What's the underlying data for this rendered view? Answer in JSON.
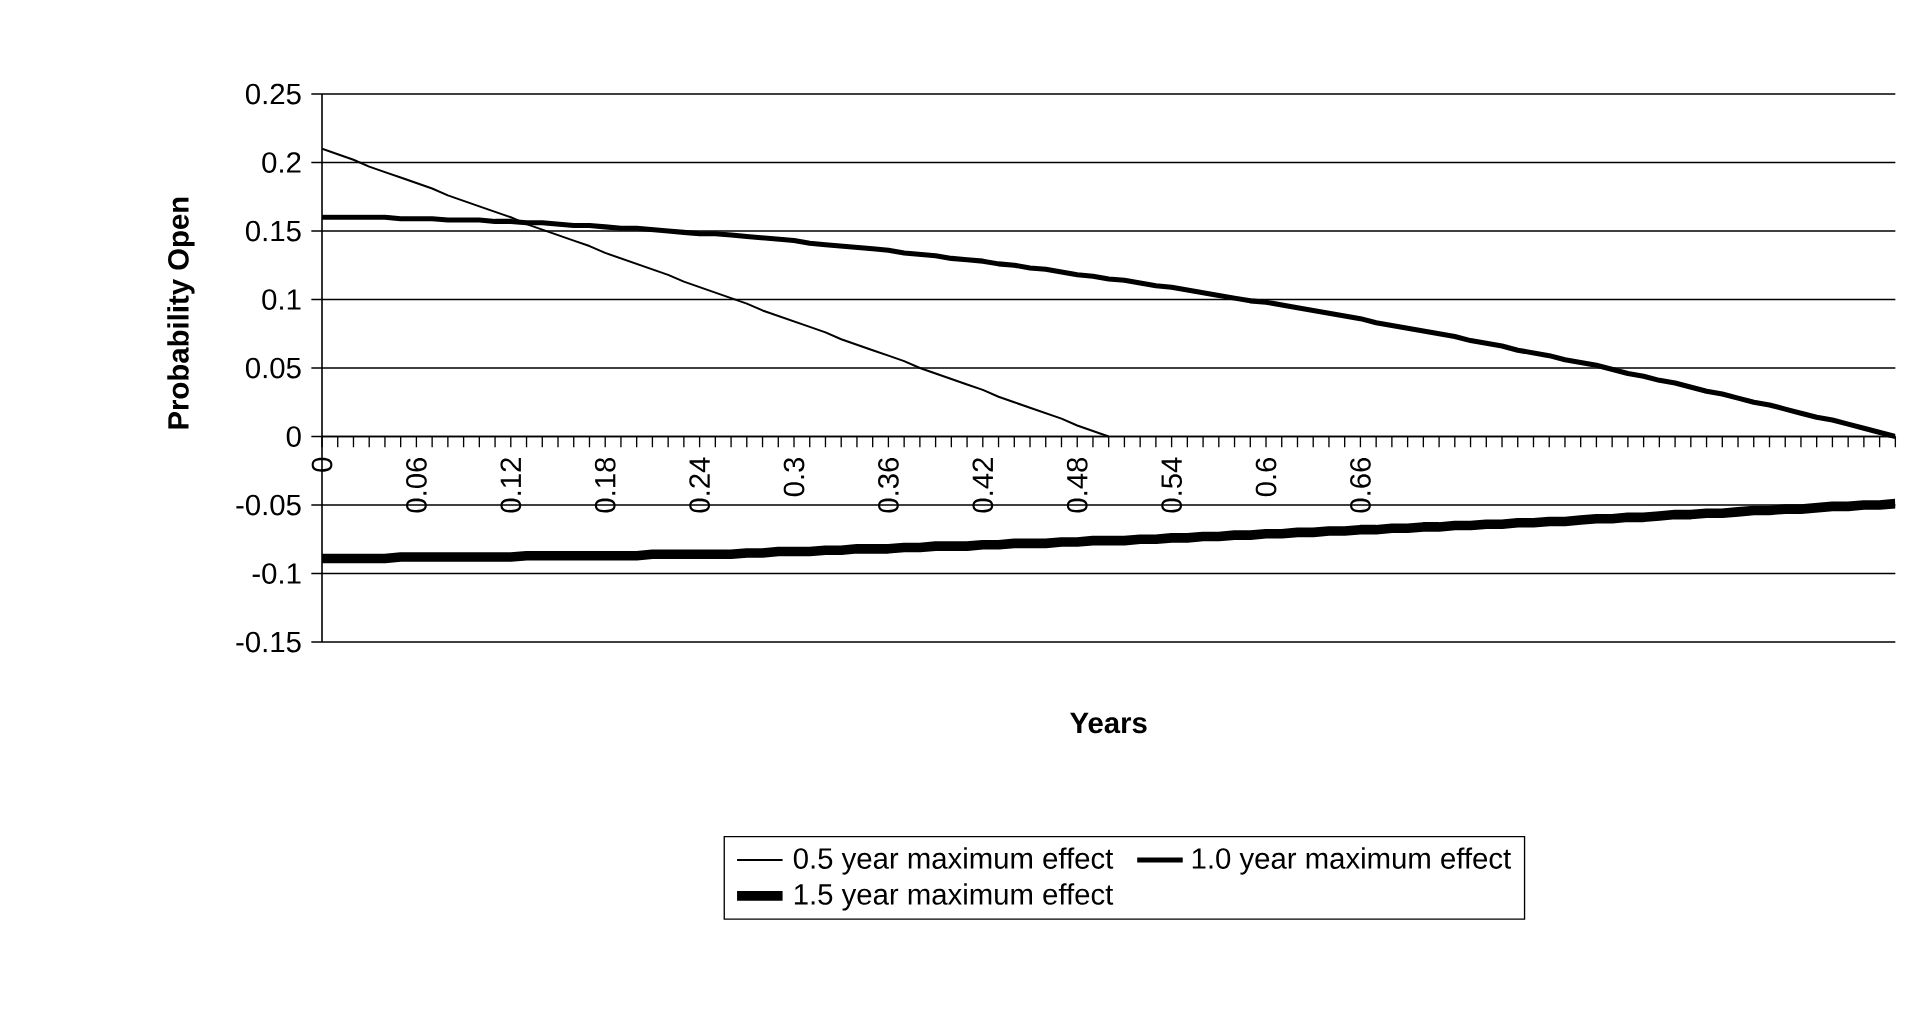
{
  "chart_data": {
    "type": "line",
    "xlabel": "Years",
    "ylabel": "Probability Open",
    "categories": [
      "0",
      null,
      null,
      null,
      null,
      null,
      "0.06",
      null,
      null,
      null,
      null,
      null,
      "0.12",
      null,
      null,
      null,
      null,
      null,
      "0.18",
      null,
      null,
      null,
      null,
      null,
      "0.24",
      null,
      null,
      null,
      null,
      null,
      "0.3",
      null,
      null,
      null,
      null,
      null,
      "0.36",
      null,
      null,
      null,
      null,
      null,
      "0.42",
      null,
      null,
      null,
      null,
      null,
      "0.48",
      null,
      null,
      null,
      null,
      null,
      "0.54",
      null,
      null,
      null,
      null,
      null,
      "0.6",
      null,
      null,
      null,
      null,
      null,
      "0.66",
      null,
      null,
      null,
      null,
      null,
      null,
      null,
      null,
      null,
      null,
      null,
      null,
      null,
      null,
      null,
      null,
      null,
      null,
      null,
      null,
      null,
      null,
      null,
      null,
      null,
      null,
      null,
      null,
      null,
      null,
      null,
      null,
      null,
      null
    ],
    "series": [
      {
        "name": "0.5 year maximum effect",
        "color": "#000000",
        "values": [
          0.21,
          0.206,
          0.202,
          0.197,
          0.193,
          0.189,
          0.185,
          0.181,
          0.176,
          0.172,
          0.168,
          0.164,
          0.16,
          0.155,
          0.151,
          0.147,
          0.143,
          0.139,
          0.134,
          0.13,
          0.126,
          0.122,
          0.118,
          0.113,
          0.109,
          0.105,
          0.101,
          0.097,
          0.092,
          0.088,
          0.084,
          0.08,
          0.076,
          0.071,
          0.067,
          0.063,
          0.059,
          0.055,
          0.05,
          0.046,
          0.042,
          0.038,
          0.034,
          0.029,
          0.025,
          0.021,
          0.017,
          0.013,
          0.008,
          0.004,
          0.0,
          null,
          null,
          null,
          null,
          null,
          null,
          null,
          null,
          null,
          null,
          null,
          null,
          null,
          null,
          null,
          null,
          null,
          null,
          null,
          null,
          null,
          null,
          null,
          null,
          null,
          null,
          null,
          null,
          null,
          null,
          null,
          null,
          null,
          null,
          null,
          null,
          null,
          null,
          null,
          null,
          null,
          null,
          null,
          null,
          null,
          null,
          null,
          null,
          null,
          null
        ]
      },
      {
        "name": "1.0 year maximum effect",
        "color": "#000000",
        "values": [
          0.16,
          0.16,
          0.16,
          0.16,
          0.16,
          0.159,
          0.159,
          0.159,
          0.158,
          0.158,
          0.158,
          0.157,
          0.157,
          0.156,
          0.156,
          0.155,
          0.154,
          0.154,
          0.153,
          0.152,
          0.152,
          0.151,
          0.15,
          0.149,
          0.148,
          0.148,
          0.147,
          0.146,
          0.145,
          0.144,
          0.143,
          0.141,
          0.14,
          0.139,
          0.138,
          0.137,
          0.136,
          0.134,
          0.133,
          0.132,
          0.13,
          0.129,
          0.128,
          0.126,
          0.125,
          0.123,
          0.122,
          0.12,
          0.118,
          0.117,
          0.115,
          0.114,
          0.112,
          0.11,
          0.109,
          0.107,
          0.105,
          0.103,
          0.101,
          0.099,
          0.098,
          0.096,
          0.094,
          0.092,
          0.09,
          0.088,
          0.086,
          0.083,
          0.081,
          0.079,
          0.077,
          0.075,
          0.073,
          0.07,
          0.068,
          0.066,
          0.063,
          0.061,
          0.059,
          0.056,
          0.054,
          0.052,
          0.049,
          0.046,
          0.044,
          0.041,
          0.039,
          0.036,
          0.033,
          0.031,
          0.028,
          0.025,
          0.023,
          0.02,
          0.017,
          0.014,
          0.012,
          0.009,
          0.006,
          0.003,
          0.0
        ]
      },
      {
        "name": "1.5 year maximum effect",
        "color": "#000000",
        "values": [
          -0.089,
          -0.089,
          -0.089,
          -0.089,
          -0.089,
          -0.088,
          -0.088,
          -0.088,
          -0.088,
          -0.088,
          -0.088,
          -0.088,
          -0.088,
          -0.087,
          -0.087,
          -0.087,
          -0.087,
          -0.087,
          -0.087,
          -0.087,
          -0.087,
          -0.086,
          -0.086,
          -0.086,
          -0.086,
          -0.086,
          -0.086,
          -0.085,
          -0.085,
          -0.084,
          -0.084,
          -0.084,
          -0.083,
          -0.083,
          -0.082,
          -0.082,
          -0.082,
          -0.081,
          -0.081,
          -0.08,
          -0.08,
          -0.08,
          -0.079,
          -0.079,
          -0.078,
          -0.078,
          -0.078,
          -0.077,
          -0.077,
          -0.076,
          -0.076,
          -0.076,
          -0.075,
          -0.075,
          -0.074,
          -0.074,
          -0.073,
          -0.073,
          -0.072,
          -0.072,
          -0.071,
          -0.071,
          -0.07,
          -0.07,
          -0.069,
          -0.069,
          -0.068,
          -0.068,
          -0.067,
          -0.067,
          -0.066,
          -0.066,
          -0.065,
          -0.065,
          -0.064,
          -0.064,
          -0.063,
          -0.063,
          -0.062,
          -0.062,
          -0.061,
          -0.06,
          -0.06,
          -0.059,
          -0.059,
          -0.058,
          -0.057,
          -0.057,
          -0.056,
          -0.056,
          -0.055,
          -0.054,
          -0.054,
          -0.053,
          -0.053,
          -0.052,
          -0.051,
          -0.051,
          -0.05,
          -0.05,
          -0.049
        ]
      }
    ],
    "ylim": [
      -0.15,
      0.25
    ],
    "yticks": [
      -0.15,
      -0.1,
      -0.05,
      0,
      0.05,
      0.1,
      0.15,
      0.2,
      0.25
    ],
    "grid": "y",
    "legend": "bottom",
    "marker": "none"
  }
}
